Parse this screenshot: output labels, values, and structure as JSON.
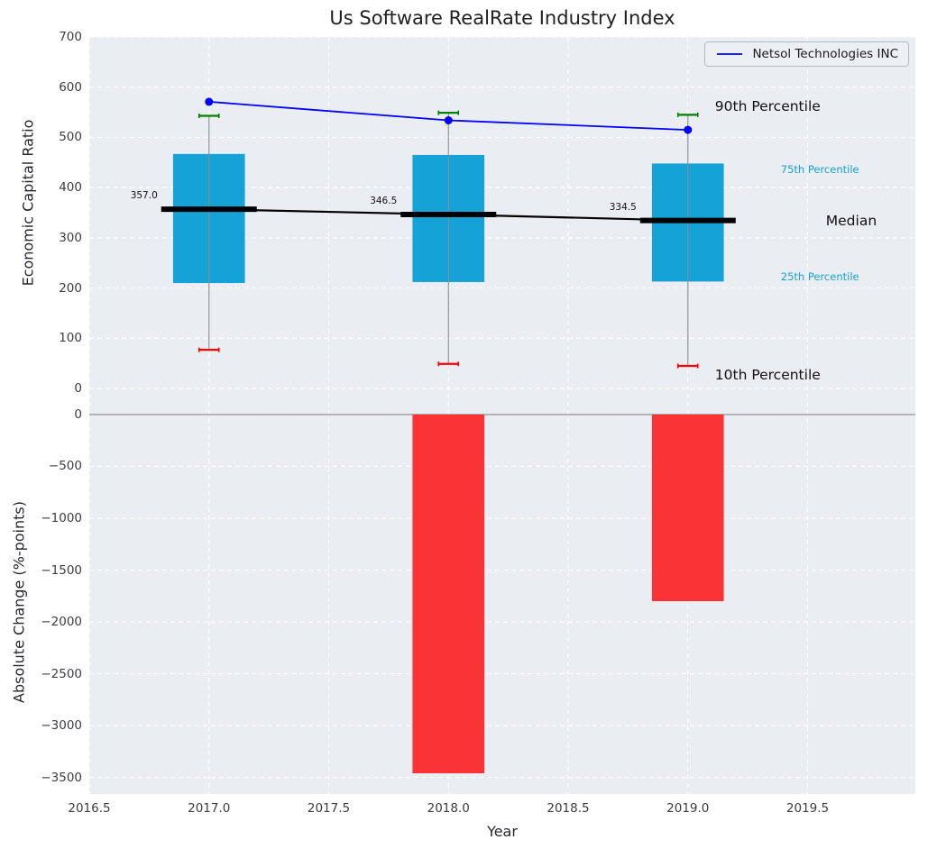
{
  "colors": {
    "figure_bg": "#ffffff",
    "plot_bg": "#eaedf2",
    "grid": "#ffffff",
    "box_fill": "#15a2d6",
    "percentile_label": "#15a2d6",
    "company_line": "#0000ff",
    "median_line": "#000000",
    "p90_cap": "#008000",
    "p10_cap": "#ff0000",
    "whisker": "#8c8c8c",
    "bar_fill": "#fa3434",
    "zero_line": "#999999"
  },
  "legend": {
    "entries": [
      {
        "label": "Netsol Technologies INC",
        "color": "#0000ff"
      }
    ]
  },
  "chart_data": [
    {
      "type": "line",
      "subplot": "top",
      "title": "Us Software RealRate Industry Index",
      "ylabel": "Economic Capital Ratio",
      "ylim": [
        -25,
        700
      ],
      "yticks": [
        0,
        100,
        200,
        300,
        400,
        500,
        600,
        700
      ],
      "ytick_labels": [
        "0",
        "100",
        "200",
        "300",
        "400",
        "500",
        "600",
        "700"
      ],
      "xlim": [
        2016.5,
        2019.95
      ],
      "grid": true,
      "legend_position": "upper right",
      "company_series": {
        "name": "Netsol Technologies INC",
        "x": [
          2017,
          2018,
          2019
        ],
        "y": [
          571,
          534,
          515
        ]
      },
      "percentile_boxes": [
        {
          "year": 2017,
          "p10": 77,
          "p25": 210,
          "median": 357.0,
          "p75": 467,
          "p90": 543,
          "median_label": "357.0"
        },
        {
          "year": 2018,
          "p10": 49,
          "p25": 212,
          "median": 346.5,
          "p75": 465,
          "p90": 549,
          "median_label": "346.5"
        },
        {
          "year": 2019,
          "p10": 45,
          "p25": 213,
          "median": 334.5,
          "p75": 448,
          "p90": 545,
          "median_label": "334.5"
        }
      ],
      "annotations": [
        {
          "id": "anno-p90",
          "text": "90th Percentile",
          "color": "#111111",
          "size": "big"
        },
        {
          "id": "anno-p75",
          "text": "75th Percentile",
          "color": "#15a2d6",
          "size": "small"
        },
        {
          "id": "anno-median",
          "text": "Median",
          "color": "#111111",
          "size": "big"
        },
        {
          "id": "anno-p25",
          "text": "25th Percentile",
          "color": "#15a2d6",
          "size": "small"
        },
        {
          "id": "anno-p10",
          "text": "10th Percentile",
          "color": "#111111",
          "size": "big"
        }
      ]
    },
    {
      "type": "bar",
      "subplot": "bottom",
      "ylabel": "Absolute Change (%-points)",
      "xlabel": "Year",
      "categories": [
        2017,
        2018,
        2019
      ],
      "values": [
        0,
        -3460,
        -1800
      ],
      "bar_width_years": 0.3,
      "ylim": [
        -3660,
        130
      ],
      "yticks": [
        0,
        -500,
        -1000,
        -1500,
        -2000,
        -2500,
        -3000,
        -3500
      ],
      "ytick_labels": [
        "0",
        "−500",
        "−1000",
        "−1500",
        "−2000",
        "−2500",
        "−3000",
        "−3500"
      ],
      "xticks": [
        2016.5,
        2017.0,
        2017.5,
        2018.0,
        2018.5,
        2019.0,
        2019.5
      ],
      "xtick_labels": [
        "2016.5",
        "2017.0",
        "2017.5",
        "2018.0",
        "2018.5",
        "2019.0",
        "2019.5"
      ],
      "grid": true
    }
  ]
}
